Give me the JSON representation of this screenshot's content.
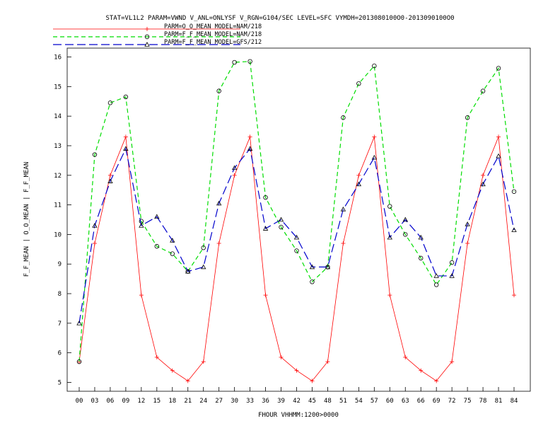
{
  "chart_data": {
    "type": "line",
    "title": "STAT=VL1L2 PARAM=VWND V_ANL=ONLYSF V_RGN=G104/SEC LEVEL=SFC VYMDH=2013080100O0-2013090100O0",
    "xlabel": "FHOUR VHHMM:1200>0000",
    "ylabel": "F_F_MEAN | O_O_MEAN | F_F_MEAN",
    "categories": [
      "00",
      "03",
      "06",
      "09",
      "12",
      "15",
      "18",
      "21",
      "24",
      "27",
      "30",
      "33",
      "36",
      "39",
      "42",
      "45",
      "48",
      "51",
      "54",
      "57",
      "60",
      "63",
      "66",
      "69",
      "72",
      "75",
      "78",
      "81",
      "84"
    ],
    "ylim": [
      4.7,
      16.3
    ],
    "yticks": [
      "5",
      "6",
      "7",
      "8",
      "9",
      "10",
      "11",
      "12",
      "13",
      "14",
      "15",
      "16"
    ],
    "grid": false,
    "legend_position": "top-left",
    "series": [
      {
        "name": "PARM=O_O_MEAN MODEL=NAM/218",
        "color": "#ff0000",
        "dash": "solid",
        "marker": "plus",
        "values": [
          5.7,
          9.7,
          12.0,
          13.3,
          7.95,
          5.85,
          5.4,
          5.05,
          5.7,
          9.7,
          12.0,
          13.3,
          7.95,
          5.85,
          5.4,
          5.05,
          5.7,
          9.7,
          12.0,
          13.3,
          7.95,
          5.85,
          5.4,
          5.05,
          5.7,
          9.7,
          12.0,
          13.3,
          7.95
        ]
      },
      {
        "name": "PARM=F_F_MEAN MODEL=NAM/218",
        "color": "#00dd00",
        "dash": "dashed",
        "marker": "circle",
        "values": [
          5.7,
          12.7,
          14.45,
          14.65,
          10.45,
          9.6,
          9.35,
          8.75,
          9.55,
          14.85,
          15.82,
          15.85,
          11.25,
          10.25,
          9.45,
          8.4,
          8.9,
          13.95,
          15.1,
          15.7,
          10.95,
          10.0,
          9.2,
          8.3,
          9.05,
          13.95,
          14.85,
          15.62,
          11.45
        ]
      },
      {
        "name": "PARM=F_F_MEAN MODEL=GFS/212",
        "color": "#0000cc",
        "dash": "longdash",
        "marker": "triangle",
        "values": [
          7.0,
          10.3,
          11.8,
          12.9,
          10.3,
          10.6,
          9.8,
          8.75,
          8.9,
          11.05,
          12.25,
          12.9,
          10.2,
          10.5,
          9.9,
          8.9,
          8.9,
          10.85,
          11.7,
          12.6,
          9.9,
          10.5,
          9.9,
          8.6,
          8.6,
          10.35,
          11.7,
          12.65,
          10.15
        ]
      }
    ]
  }
}
